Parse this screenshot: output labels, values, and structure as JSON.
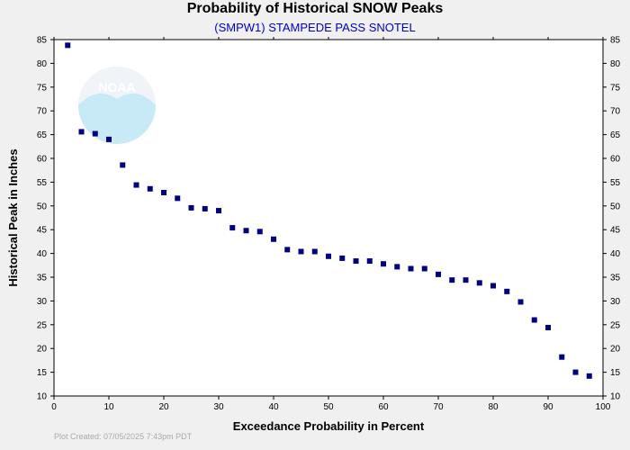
{
  "chart_data": {
    "type": "scatter",
    "title": "Probability of Historical SNOW Peaks",
    "subtitle": "(SMPW1) STAMPEDE PASS SNOTEL",
    "xlabel": "Exceedance Probability in Percent",
    "ylabel": "Historical Peak in Inches",
    "xlim": [
      0,
      100
    ],
    "ylim": [
      10,
      85
    ],
    "xticks": [
      0,
      10,
      20,
      30,
      40,
      50,
      60,
      70,
      80,
      90,
      100
    ],
    "yticks": [
      10,
      15,
      20,
      25,
      30,
      35,
      40,
      45,
      50,
      55,
      60,
      65,
      70,
      75,
      80,
      85
    ],
    "grid": false,
    "marker_color": "#000080",
    "points": [
      {
        "x": 2.5,
        "y": 83.8
      },
      {
        "x": 5.0,
        "y": 65.6
      },
      {
        "x": 7.5,
        "y": 65.2
      },
      {
        "x": 10.0,
        "y": 64.0
      },
      {
        "x": 12.5,
        "y": 58.6
      },
      {
        "x": 15.0,
        "y": 54.4
      },
      {
        "x": 17.5,
        "y": 53.6
      },
      {
        "x": 20.0,
        "y": 52.8
      },
      {
        "x": 22.5,
        "y": 51.6
      },
      {
        "x": 25.0,
        "y": 49.6
      },
      {
        "x": 27.5,
        "y": 49.4
      },
      {
        "x": 30.0,
        "y": 49.0
      },
      {
        "x": 32.5,
        "y": 45.4
      },
      {
        "x": 35.0,
        "y": 44.8
      },
      {
        "x": 37.5,
        "y": 44.6
      },
      {
        "x": 40.0,
        "y": 43.0
      },
      {
        "x": 42.5,
        "y": 40.8
      },
      {
        "x": 45.0,
        "y": 40.4
      },
      {
        "x": 47.5,
        "y": 40.4
      },
      {
        "x": 50.0,
        "y": 39.4
      },
      {
        "x": 52.5,
        "y": 39.0
      },
      {
        "x": 55.0,
        "y": 38.4
      },
      {
        "x": 57.5,
        "y": 38.4
      },
      {
        "x": 60.0,
        "y": 37.8
      },
      {
        "x": 62.5,
        "y": 37.2
      },
      {
        "x": 65.0,
        "y": 36.8
      },
      {
        "x": 67.5,
        "y": 36.8
      },
      {
        "x": 70.0,
        "y": 35.6
      },
      {
        "x": 72.5,
        "y": 34.4
      },
      {
        "x": 75.0,
        "y": 34.4
      },
      {
        "x": 77.5,
        "y": 33.8
      },
      {
        "x": 80.0,
        "y": 33.2
      },
      {
        "x": 82.5,
        "y": 32.0
      },
      {
        "x": 85.0,
        "y": 29.8
      },
      {
        "x": 87.5,
        "y": 26.0
      },
      {
        "x": 90.0,
        "y": 24.4
      },
      {
        "x": 92.5,
        "y": 18.2
      },
      {
        "x": 95.0,
        "y": 15.0
      },
      {
        "x": 97.5,
        "y": 14.2
      }
    ]
  },
  "logo": {
    "text": "NOAA"
  },
  "footer": {
    "credit": "Plot Created: 07/05/2025 7:43pm PDT"
  }
}
